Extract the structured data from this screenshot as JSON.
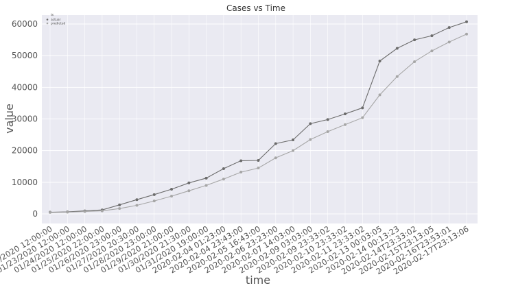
{
  "chart_data": {
    "type": "line",
    "title": "Cases vs Time",
    "xlabel": "time",
    "ylabel": "value",
    "ylim": [
      0,
      62000
    ],
    "yticks": [
      0,
      10000,
      20000,
      30000,
      40000,
      50000,
      60000
    ],
    "grid": true,
    "legend": {
      "placement": "top-left",
      "title": "ts",
      "entries": [
        "actual",
        "predicted"
      ]
    },
    "categories": [
      "01/22/2020 12:00:00",
      "01/23/2020 12:00:00",
      "01/24/2020 12:00:00",
      "01/25/2020 22:00:00",
      "01/26/2020 23:00:00",
      "01/27/2020 20:30:00",
      "01/28/2020 23:00:00",
      "01/29/2020 21:00:00",
      "01/30/2020 21:30:00",
      "01/31/2020 19:00:00",
      "2020-02-04 01:23:00",
      "2020-02-04 23:43:00",
      "2020-02-05 16:43:00",
      "2020-02-06 23:23:00",
      "2020-02-07 14:03:00",
      "2020-02-09 03:03:00",
      "2020-02-09 23:33:02",
      "2020-02-10 23:33:02",
      "2020-02-11 23:33:02",
      "2020-02-13 00:03:05",
      "2020-02-14 00:13:23",
      "2020-02-14T23:33:02",
      "2020-02-15T23:13:05",
      "2020-02-16T23:53:01",
      "2020-02-17T23:13:06"
    ],
    "series": [
      {
        "name": "actual",
        "color": "#6b6b6b",
        "values": [
          550,
          650,
          950,
          1250,
          2850,
          4500,
          6100,
          7800,
          9800,
          11300,
          14300,
          16800,
          16900,
          22200,
          23400,
          28500,
          29800,
          31600,
          33500,
          48300,
          52300,
          55000,
          56300,
          58900,
          60700
        ]
      },
      {
        "name": "predicted",
        "color": "#a6a6a6",
        "values": [
          450,
          550,
          750,
          950,
          1700,
          2700,
          4100,
          5600,
          7300,
          9000,
          11000,
          13200,
          14500,
          17700,
          20000,
          23500,
          26000,
          28200,
          30400,
          37600,
          43400,
          48100,
          51500,
          54300,
          56800
        ]
      }
    ]
  }
}
